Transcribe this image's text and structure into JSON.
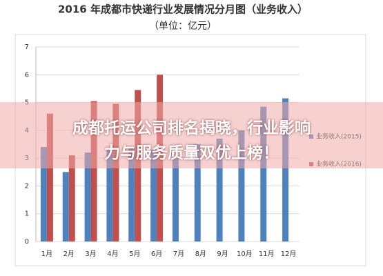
{
  "chart_data": {
    "type": "bar",
    "title": "2016 年成都市快递行业发展情况分月图（业务收入）",
    "subtitle": "（单位：亿元）",
    "categories": [
      "1月",
      "2月",
      "3月",
      "4月",
      "5月",
      "6月",
      "7月",
      "8月",
      "9月",
      "10月",
      "11月",
      "12月"
    ],
    "series": [
      {
        "name": "业务收入(2015)",
        "color": "#4f81bd",
        "values": [
          3.4,
          2.5,
          3.2,
          3.3,
          3.4,
          3.3,
          3.0,
          3.5,
          3.7,
          4.0,
          4.85,
          5.15
        ]
      },
      {
        "name": "业务收入(2016)",
        "color": "#c0504d",
        "values": [
          4.6,
          3.1,
          5.05,
          4.95,
          5.45,
          6.0,
          null,
          null,
          null,
          null,
          null,
          null
        ]
      }
    ],
    "ylim": [
      0,
      7
    ],
    "yticks": [
      0,
      1,
      2,
      3,
      4,
      5,
      6,
      7
    ],
    "grid": true,
    "legend": "right",
    "banner": [
      "成都托运公司排名揭晓，行业影响",
      "力与服务质量双优上榜！"
    ]
  }
}
